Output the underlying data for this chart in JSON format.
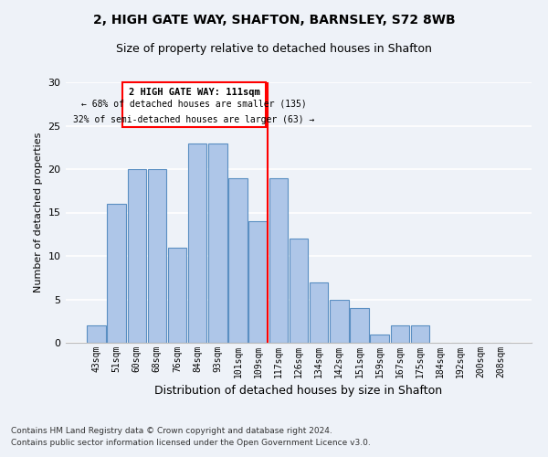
{
  "title1": "2, HIGH GATE WAY, SHAFTON, BARNSLEY, S72 8WB",
  "title2": "Size of property relative to detached houses in Shafton",
  "xlabel": "Distribution of detached houses by size in Shafton",
  "ylabel": "Number of detached properties",
  "categories": [
    "43sqm",
    "51sqm",
    "60sqm",
    "68sqm",
    "76sqm",
    "84sqm",
    "93sqm",
    "101sqm",
    "109sqm",
    "117sqm",
    "126sqm",
    "134sqm",
    "142sqm",
    "151sqm",
    "159sqm",
    "167sqm",
    "175sqm",
    "184sqm",
    "192sqm",
    "200sqm",
    "208sqm"
  ],
  "values": [
    2,
    16,
    20,
    20,
    11,
    23,
    23,
    19,
    14,
    19,
    12,
    7,
    5,
    4,
    1,
    2,
    2,
    0,
    0,
    0,
    0
  ],
  "bar_color": "#aec6e8",
  "bar_edge_color": "#5a8fc2",
  "red_line_index": 8,
  "annotation_title": "2 HIGH GATE WAY: 111sqm",
  "annotation_line1": "← 68% of detached houses are smaller (135)",
  "annotation_line2": "32% of semi-detached houses are larger (63) →",
  "ylim": [
    0,
    30
  ],
  "yticks": [
    0,
    5,
    10,
    15,
    20,
    25,
    30
  ],
  "footnote1": "Contains HM Land Registry data © Crown copyright and database right 2024.",
  "footnote2": "Contains public sector information licensed under the Open Government Licence v3.0.",
  "background_color": "#eef2f8",
  "plot_background": "#eef2f8",
  "grid_color": "#ffffff"
}
